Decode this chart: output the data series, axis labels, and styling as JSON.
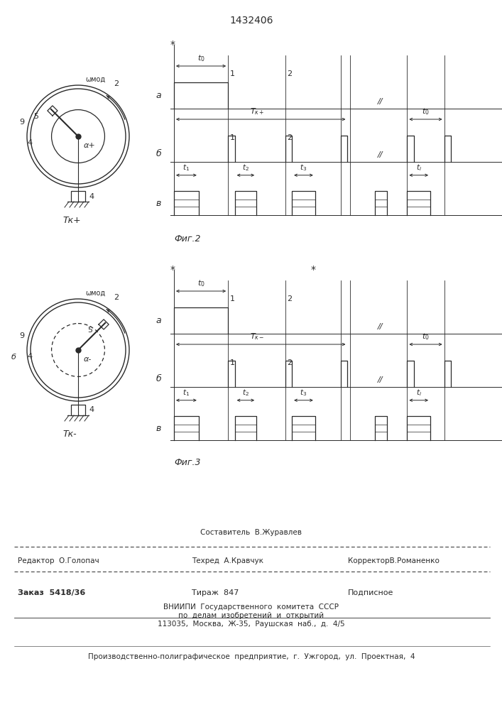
{
  "title": "1432406",
  "line_color": "#2a2a2a",
  "bg_color": "#ffffff",
  "fig2_label": "Фиг.2",
  "fig3_label": "Фиг.3",
  "footer": {
    "sostavitel": "Составитель  В.Журавлев",
    "redaktor": "Редактор  О.Голопач",
    "tehred": "Техред  А.Кравчук",
    "korrektor": "КорректорВ.Романенко",
    "zakaz": "Заказ  5418/36",
    "tirazh": "Тираж  847",
    "podpisnoe": "Подписное",
    "vniipи": "ВНИИПИ  Государственного  комитета  СССР",
    "podelam": "по  делам  изобретений  и  открытий",
    "address": "113035,  Москва,  Ж-35,  Раушская  наб.,  д.  4/5",
    "predpriyatie": "Производственно-полиграфическое  предприятие,  г.  Ужгород,  ул.  Проектная,  4"
  }
}
